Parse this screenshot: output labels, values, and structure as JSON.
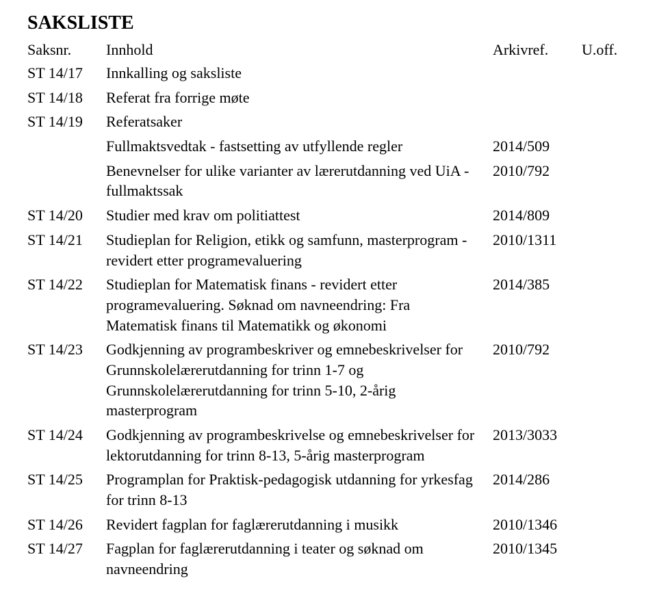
{
  "title": "SAKSLISTE",
  "header": {
    "saksnr": "Saksnr.",
    "innhold": "Innhold",
    "arkivref": "Arkivref.",
    "uoff": "U.off."
  },
  "rows": [
    {
      "nr": "ST 14/17",
      "innhold": "Innkalling og saksliste",
      "ark": ""
    },
    {
      "nr": "ST 14/18",
      "innhold": "Referat fra forrige møte",
      "ark": ""
    },
    {
      "nr": "ST 14/19",
      "innhold": "Referatsaker",
      "ark": ""
    },
    {
      "nr": "",
      "innhold": "Fullmaktsvedtak - fastsetting av utfyllende regler",
      "ark": "2014/509"
    },
    {
      "nr": "",
      "innhold": "Benevnelser for ulike varianter av lærerutdanning ved UiA - fullmaktssak",
      "ark": "2010/792"
    },
    {
      "nr": "ST 14/20",
      "innhold": "Studier med krav om politiattest",
      "ark": "2014/809"
    },
    {
      "nr": "ST 14/21",
      "innhold": "Studieplan for Religion, etikk og samfunn, masterprogram - revidert etter programevaluering",
      "ark": "2010/1311"
    },
    {
      "nr": "ST 14/22",
      "innhold": "Studieplan for Matematisk finans - revidert etter programevaluering. Søknad om navneendring: Fra Matematisk finans til Matematikk og økonomi",
      "ark": "2014/385"
    },
    {
      "nr": "ST 14/23",
      "innhold": "Godkjenning av programbeskriver og emnebeskrivelser for Grunnskolelærerutdanning for trinn 1-7 og Grunnskolelærerutdanning for trinn 5-10, 2-årig masterprogram",
      "ark": "2010/792"
    },
    {
      "nr": "ST 14/24",
      "innhold": "Godkjenning av programbeskrivelse og emnebeskrivelser for lektorutdanning for trinn 8-13, 5-årig masterprogram",
      "ark": "2013/3033"
    },
    {
      "nr": "ST 14/25",
      "innhold": "Programplan for Praktisk-pedagogisk utdanning for yrkesfag for trinn 8-13",
      "ark": "2014/286"
    },
    {
      "nr": "ST 14/26",
      "innhold": "Revidert fagplan for faglærerutdanning i musikk",
      "ark": "2010/1346"
    },
    {
      "nr": "ST 14/27",
      "innhold": "Fagplan for faglærerutdanning i teater og søknad om navneendring",
      "ark": "2010/1345"
    }
  ]
}
